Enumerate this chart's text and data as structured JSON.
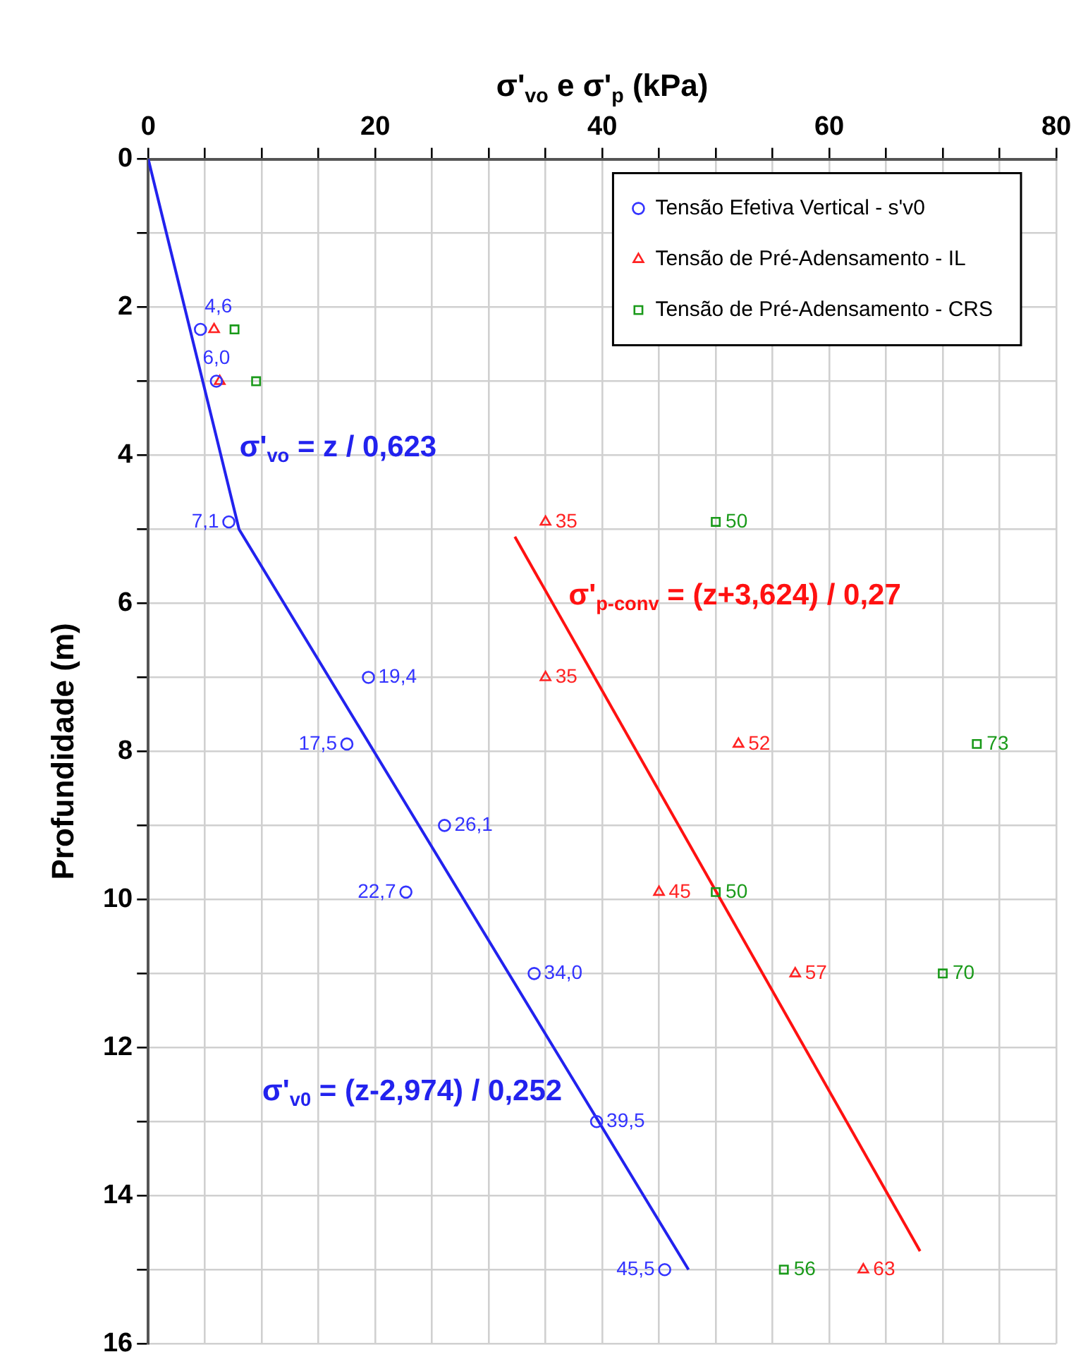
{
  "chart_data": {
    "type": "scatter",
    "xlabel": "σ'$_{vo}$ e σ'$_{p}$ (kPa)",
    "ylabel": "Profundidade (m)",
    "xlim": [
      0,
      80
    ],
    "xticks": [
      0,
      {
        "value": 5,
        "label": null
      },
      {
        "value": 10,
        "label": null
      },
      {
        "value": 15,
        "label": null
      },
      20,
      {
        "value": 25,
        "label": null
      },
      {
        "value": 30,
        "label": null
      },
      {
        "value": 35,
        "label": null
      },
      40,
      {
        "value": 45,
        "label": null
      },
      {
        "value": 50,
        "label": null
      },
      {
        "value": 55,
        "label": null
      },
      60,
      {
        "value": 65,
        "label": null
      },
      {
        "value": 70,
        "label": null
      },
      {
        "value": 75,
        "label": null
      },
      80
    ],
    "ylim": [
      16,
      0
    ],
    "yticks": [
      0,
      {
        "value": 1,
        "label": null
      },
      2,
      {
        "value": 3,
        "label": null
      },
      4,
      {
        "value": 5,
        "label": null
      },
      6,
      {
        "value": 7,
        "label": null
      },
      8,
      {
        "value": 9,
        "label": null
      },
      10,
      {
        "value": 11,
        "label": null
      },
      12,
      {
        "value": 13,
        "label": null
      },
      14,
      {
        "value": 15,
        "label": null
      },
      16
    ],
    "grid": true,
    "legend": "top right",
    "series": [
      {
        "name": "Tensão Efetiva Vertical - s'v0",
        "marker": "circle",
        "color": "#3333ff",
        "x": [
          4.6,
          6.0,
          7.1,
          19.4,
          17.5,
          26.1,
          22.7,
          34.0,
          39.5,
          45.5
        ],
        "values": [
          2.3,
          3.0,
          4.9,
          7.0,
          7.9,
          9.0,
          9.9,
          11.0,
          13.0,
          15.0
        ]
      },
      {
        "name": "Tensão de Pré-Adensamento - IL",
        "marker": "triangle",
        "color": "#ff2222",
        "x": [
          5.8,
          6.3,
          35,
          35,
          52,
          45,
          57,
          63
        ],
        "values": [
          2.3,
          3.0,
          4.9,
          7.0,
          7.9,
          9.9,
          11.0,
          15.0
        ]
      },
      {
        "name": "Tensão de Pré-Adensamento - CRS",
        "marker": "square",
        "color": "#1a9a1a",
        "x": [
          7.6,
          9.5,
          50,
          73,
          50,
          70,
          56
        ],
        "values": [
          2.3,
          3.0,
          4.9,
          7.9,
          9.9,
          11.0,
          15.0
        ]
      },
      {
        "type": "line",
        "marker": "none",
        "color": "#2222ee",
        "x": [
          0,
          8.0,
          47.6
        ],
        "values": [
          0,
          5.0,
          15.0
        ]
      },
      {
        "type": "line",
        "marker": "none",
        "color": "#ff1111",
        "x": [
          32.3,
          68.0
        ],
        "values": [
          5.1,
          14.75
        ]
      }
    ],
    "annotations": [
      {
        "text": "σ'$_{vo}$ = z / 0,623",
        "x": 6.3,
        "y": 3.9
      },
      {
        "text": "σ'$_{p-conv}$ = (z+3,624) / 0,27",
        "x": 35.3,
        "y": 5.9
      },
      {
        "text": "σ'$_{v0}$ = (z-2,974) / 0,252",
        "x": 38.2,
        "y": 12.6
      },
      {
        "text": "4,6",
        "x": 4.6,
        "y": 2.3
      },
      {
        "text": "6,0",
        "x": 6.0,
        "y": 3.0
      },
      {
        "text": "7,1",
        "x": 7.1,
        "y": 4.9
      },
      {
        "text": "19,4",
        "x": 19.4,
        "y": 7.0
      },
      {
        "text": "17,5",
        "x": 17.5,
        "y": 7.9
      },
      {
        "text": "26,1",
        "x": 26.1,
        "y": 9.0
      },
      {
        "text": "22,7",
        "x": 22.7,
        "y": 9.9
      },
      {
        "text": "34,0",
        "x": 34.0,
        "y": 11.0
      },
      {
        "text": "39,5",
        "x": 39.5,
        "y": 13.0
      },
      {
        "text": "45,5",
        "x": 45.5,
        "y": 15.0
      },
      {
        "text": "35",
        "x": 35,
        "y": 4.9
      },
      {
        "text": "35",
        "x": 35,
        "y": 7.0
      },
      {
        "text": "52",
        "x": 52,
        "y": 7.9
      },
      {
        "text": "45",
        "x": 45,
        "y": 9.9
      },
      {
        "text": "57",
        "x": 57,
        "y": 11.0
      },
      {
        "text": "63",
        "x": 63,
        "y": 15.0
      },
      {
        "text": "50",
        "x": 50,
        "y": 4.9
      },
      {
        "text": "73",
        "x": 73,
        "y": 7.9
      },
      {
        "text": "50",
        "x": 50,
        "y": 9.9
      },
      {
        "text": "70",
        "x": 70,
        "y": 11.0
      },
      {
        "text": "56",
        "x": 56,
        "y": 15.0
      }
    ]
  }
}
